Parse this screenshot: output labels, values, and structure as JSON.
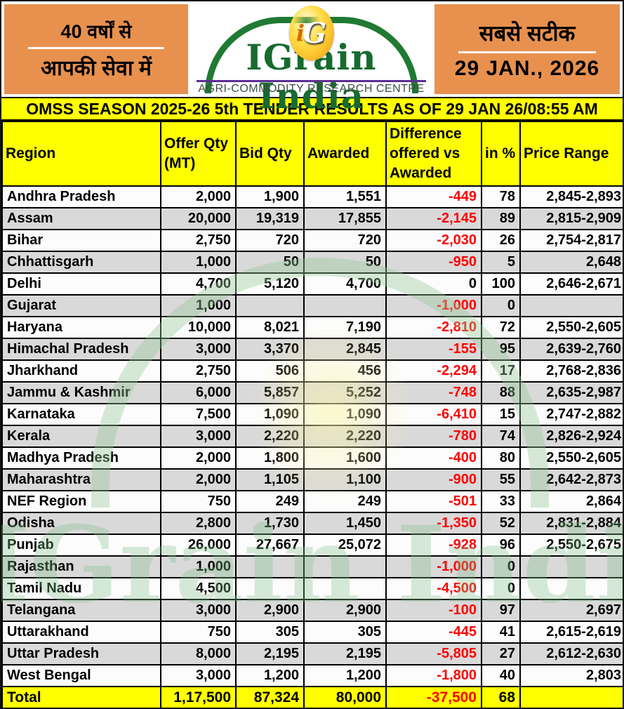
{
  "masthead": {
    "left_box": {
      "line1": "40 वर्षों से",
      "line2": "आपकी सेवा में"
    },
    "logo": {
      "badge_text_i": "i",
      "badge_text_g": "G",
      "title": "IGrain India",
      "subtitle": "AGRI-COMMODITY RESEARCH CENTRE"
    },
    "right_box": {
      "tagline": "सबसे सटीक",
      "date": "29 JAN., 2026"
    }
  },
  "banner": {
    "title": "OMSS SEASON 2025-26 5th TENDER RESULTS AS OF 29 JAN 26/08:55 AM"
  },
  "watermark": {
    "text": "IGrain India"
  },
  "colors": {
    "masthead_orange": "#E8914E",
    "highlight_yellow": "#FFFF00",
    "logo_green": "#176B2F",
    "logo_underline_purple": "#5B2E91",
    "negative_red": "#FF0000",
    "alt_row_gray": "#D9D9D9"
  },
  "table": {
    "columns": [
      "Region",
      "Offer Qty (MT)",
      "Bid Qty",
      "Awarded",
      "Difference offered vs Awarded",
      "in %",
      "Price Range"
    ],
    "rows": [
      [
        "Andhra Pradesh",
        "2,000",
        "1,900",
        "1,551",
        "-449",
        "78",
        "2,845-2,893"
      ],
      [
        "Assam",
        "20,000",
        "19,319",
        "17,855",
        "-2,145",
        "89",
        "2,815-2,909"
      ],
      [
        "Bihar",
        "2,750",
        "720",
        "720",
        "-2,030",
        "26",
        "2,754-2,817"
      ],
      [
        "Chhattisgarh",
        "1,000",
        "50",
        "50",
        "-950",
        "5",
        "2,648"
      ],
      [
        "Delhi",
        "4,700",
        "5,120",
        "4,700",
        "0",
        "100",
        "2,646-2,671"
      ],
      [
        "Gujarat",
        "1,000",
        "",
        "",
        "-1,000",
        "0",
        ""
      ],
      [
        "Haryana",
        "10,000",
        "8,021",
        "7,190",
        "-2,810",
        "72",
        "2,550-2,605"
      ],
      [
        "Himachal Pradesh",
        "3,000",
        "3,370",
        "2,845",
        "-155",
        "95",
        "2,639-2,760"
      ],
      [
        "Jharkhand",
        "2,750",
        "506",
        "456",
        "-2,294",
        "17",
        "2,768-2,836"
      ],
      [
        "Jammu & Kashmir",
        "6,000",
        "5,857",
        "5,252",
        "-748",
        "88",
        "2,635-2,987"
      ],
      [
        "Karnataka",
        "7,500",
        "1,090",
        "1,090",
        "-6,410",
        "15",
        "2,747-2,882"
      ],
      [
        "Kerala",
        "3,000",
        "2,220",
        "2,220",
        "-780",
        "74",
        "2,826-2,924"
      ],
      [
        "Madhya Pradesh",
        "2,000",
        "1,800",
        "1,600",
        "-400",
        "80",
        "2,550-2,605"
      ],
      [
        "Maharashtra",
        "2,000",
        "1,105",
        "1,100",
        "-900",
        "55",
        "2,642-2,873"
      ],
      [
        "NEF Region",
        "750",
        "249",
        "249",
        "-501",
        "33",
        "2,864"
      ],
      [
        "Odisha",
        "2,800",
        "1,730",
        "1,450",
        "-1,350",
        "52",
        "2,831-2,884"
      ],
      [
        "Punjab",
        "26,000",
        "27,667",
        "25,072",
        "-928",
        "96",
        "2,550-2,675"
      ],
      [
        "Rajasthan",
        "1,000",
        "",
        "",
        "-1,000",
        "0",
        ""
      ],
      [
        "Tamil Nadu",
        "4,500",
        "",
        "",
        "-4,500",
        "0",
        ""
      ],
      [
        "Telangana",
        "3,000",
        "2,900",
        "2,900",
        "-100",
        "97",
        "2,697"
      ],
      [
        "Uttarakhand",
        "750",
        "305",
        "305",
        "-445",
        "41",
        "2,615-2,619"
      ],
      [
        "Uttar Pradesh",
        "8,000",
        "2,195",
        "2,195",
        "-5,805",
        "27",
        "2,612-2,630"
      ],
      [
        "West Bengal",
        "3,000",
        "1,200",
        "1,200",
        "-1,800",
        "40",
        "2,803"
      ]
    ],
    "total": [
      "Total",
      "1,17,500",
      "87,324",
      "80,000",
      "-37,500",
      "68",
      ""
    ]
  }
}
